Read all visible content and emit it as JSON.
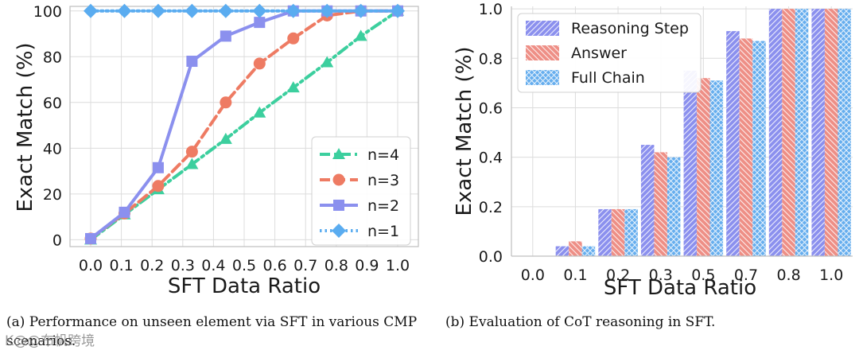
{
  "chart_data": [
    {
      "type": "line",
      "xlabel": "SFT Data Ratio",
      "ylabel": "Exact Match (%)",
      "x": [
        0.0,
        0.11,
        0.22,
        0.33,
        0.44,
        0.55,
        0.66,
        0.77,
        0.88,
        1.0
      ],
      "xticks": [
        "0.0",
        "0.1",
        "0.2",
        "0.3",
        "0.4",
        "0.5",
        "0.6",
        "0.7",
        "0.8",
        "0.9",
        "1.0"
      ],
      "yticks": [
        "0",
        "20",
        "40",
        "60",
        "80",
        "100"
      ],
      "ylim": [
        -3,
        102
      ],
      "grid": true,
      "legend_position": "lower-right",
      "series": [
        {
          "name": "n=4",
          "color": "#3ccf9e",
          "marker": "triangle",
          "dash": "dashdot",
          "values": [
            0,
            11,
            22,
            33,
            44,
            55.5,
            66.5,
            77.5,
            89,
            100
          ]
        },
        {
          "name": "n=3",
          "color": "#ee7b63",
          "marker": "circle",
          "dash": "dashed",
          "values": [
            0.5,
            11.5,
            23.5,
            38.5,
            60,
            77,
            88,
            98,
            100,
            100
          ]
        },
        {
          "name": "n=2",
          "color": "#8b90ee",
          "marker": "square",
          "dash": "solid",
          "values": [
            0.5,
            12,
            31.5,
            78,
            89,
            95,
            100,
            100,
            100,
            100
          ]
        },
        {
          "name": "n=1",
          "color": "#5aacf0",
          "marker": "diamond",
          "dash": "dotted",
          "values": [
            100,
            100,
            100,
            100,
            100,
            100,
            100,
            100,
            100,
            100
          ]
        }
      ]
    },
    {
      "type": "bar",
      "xlabel": "SFT Data Ratio",
      "ylabel": "Exact Match (%)",
      "categories": [
        "0.0",
        "0.1",
        "0.2",
        "0.3",
        "0.5",
        "0.7",
        "0.8",
        "1.0"
      ],
      "yticks": [
        "0.0",
        "0.2",
        "0.4",
        "0.6",
        "0.8",
        "1.0"
      ],
      "ylim": [
        0,
        1.01
      ],
      "grid": true,
      "legend_position": "upper-left",
      "series": [
        {
          "name": "Reasoning Step",
          "color": "#8b90ee",
          "hatch": "diagonal",
          "values": [
            0,
            0.04,
            0.19,
            0.45,
            0.75,
            0.91,
            1.0,
            1.0
          ]
        },
        {
          "name": "Answer",
          "color": "#ee8f86",
          "hatch": "back-diagonal",
          "values": [
            0,
            0.06,
            0.19,
            0.42,
            0.72,
            0.88,
            1.0,
            1.0
          ]
        },
        {
          "name": "Full Chain",
          "color": "#66aeee",
          "hatch": "cross",
          "values": [
            0,
            0.04,
            0.19,
            0.4,
            0.71,
            0.87,
            1.0,
            1.0
          ]
        }
      ]
    }
  ],
  "captions": {
    "a": "(a) Performance on unseen element via SFT in various CMP scenarios.",
    "b": "(b) Evaluation of CoT reasoning in SFT."
  },
  "watermark": "K@@布帆跨境"
}
